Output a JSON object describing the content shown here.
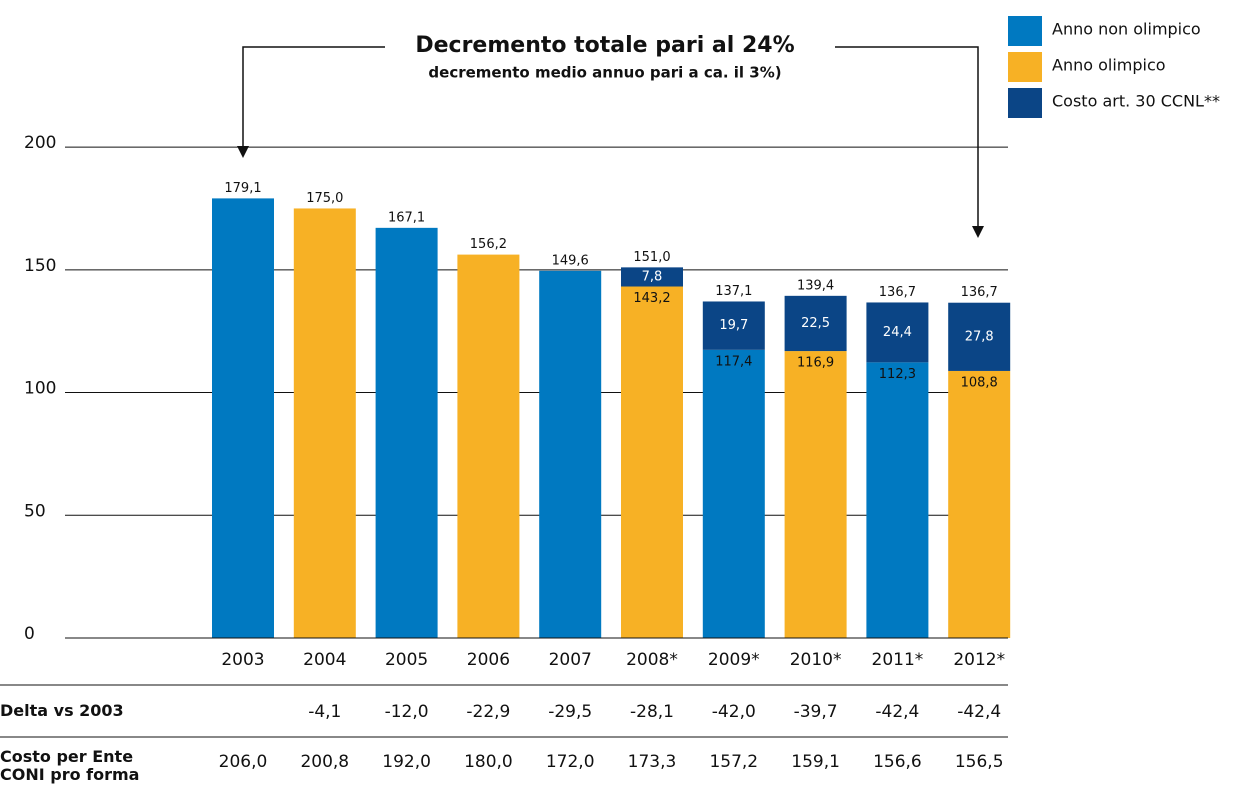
{
  "chart_data": {
    "type": "stacked_bar",
    "annotation_title": "Decremento totale pari al 24%",
    "annotation_subtitle": "decremento medio annuo pari a ca. il 3%)",
    "categories": [
      "2003",
      "2004",
      "2005",
      "2006",
      "2007",
      "2008*",
      "2009*",
      "2010*",
      "2011*",
      "2012*"
    ],
    "series": [
      {
        "name": "Anno non olimpico",
        "color": "#0079c1",
        "values": [
          179.1,
          null,
          167.1,
          null,
          149.6,
          null,
          117.4,
          null,
          112.3,
          null
        ],
        "value_labels": [
          null,
          null,
          null,
          null,
          null,
          null,
          "117,4",
          null,
          "112,3",
          null
        ]
      },
      {
        "name": "Anno olimpico",
        "color": "#f7b125",
        "values": [
          null,
          175.0,
          null,
          156.2,
          null,
          143.2,
          null,
          116.9,
          null,
          108.8
        ],
        "value_labels": [
          null,
          null,
          null,
          null,
          null,
          "143,2",
          null,
          "116,9",
          null,
          "108,8"
        ]
      },
      {
        "name": "Costo art. 30 CCNL**",
        "color": "#0b4586",
        "values": [
          null,
          null,
          null,
          null,
          null,
          7.8,
          19.7,
          22.5,
          24.4,
          27.8
        ],
        "value_labels": [
          null,
          null,
          null,
          null,
          null,
          "7,8",
          "19,7",
          "22,5",
          "24,4",
          "27,8"
        ]
      }
    ],
    "totals": [
      179.1,
      175.0,
      167.1,
      156.2,
      149.6,
      151.0,
      137.1,
      139.4,
      136.7,
      136.7
    ],
    "total_labels": [
      "179,1",
      "175,0",
      "167,1",
      "156,2",
      "149,6",
      "151,0",
      "137,1",
      "139,4",
      "136,7",
      "136,7"
    ],
    "ylim": [
      0,
      220
    ],
    "yticks": [
      0,
      50,
      100,
      150,
      200
    ],
    "grid": true,
    "rows": [
      {
        "label": "Delta vs 2003",
        "values": [
          null,
          -4.1,
          -12.0,
          -22.9,
          -29.5,
          -28.1,
          -42.0,
          -39.7,
          -42.4,
          -42.4
        ],
        "value_labels": [
          null,
          "-4,1",
          "-12,0",
          "-22,9",
          "-29,5",
          "-28,1",
          "-42,0",
          "-39,7",
          "-42,4",
          "-42,4"
        ]
      },
      {
        "label": "Costo per Ente CONI pro forma",
        "values": [
          206.0,
          200.8,
          192.0,
          180.0,
          172.0,
          173.3,
          157.2,
          159.1,
          156.6,
          156.5
        ],
        "value_labels": [
          "206,0",
          "200,8",
          "192,0",
          "180,0",
          "172,0",
          "173,3",
          "157,2",
          "159,1",
          "156,6",
          "156,5"
        ]
      }
    ]
  }
}
